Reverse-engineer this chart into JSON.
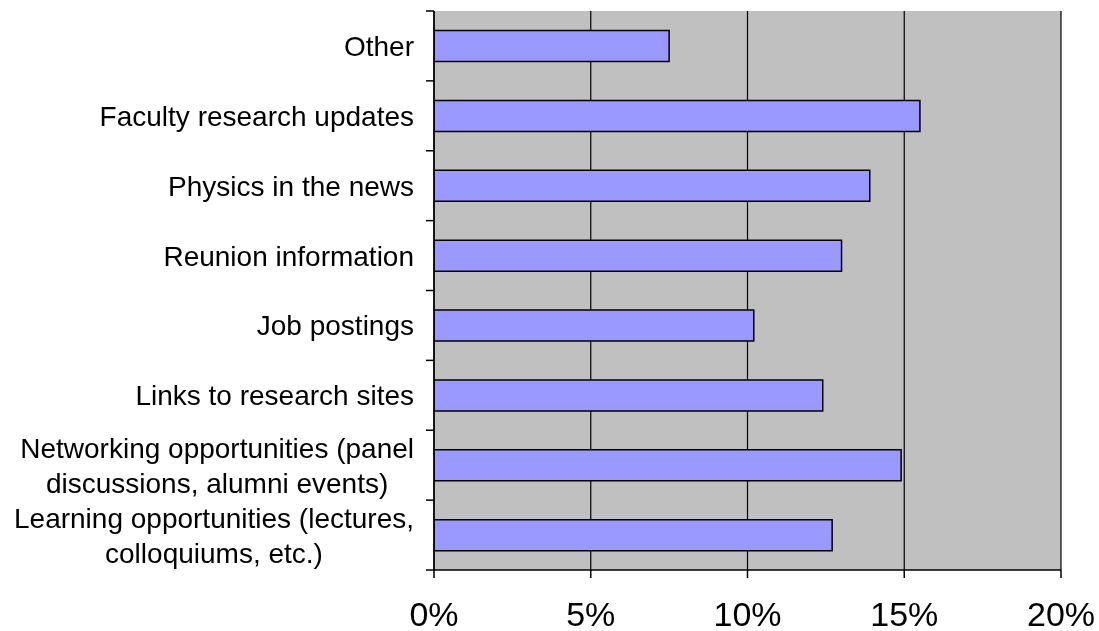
{
  "chart_data": {
    "type": "bar",
    "orientation": "horizontal",
    "categories": [
      "Other",
      "Faculty research updates",
      "Physics in the news",
      "Reunion information",
      "Job postings",
      "Links to research sites",
      "Networking opportunities (panel discussions, alumni events)",
      "Learning opportunities (lectures, colloquiums, etc.)"
    ],
    "values": [
      7.5,
      15.5,
      13.9,
      13.0,
      10.2,
      12.4,
      14.9,
      12.7
    ],
    "color": "#9999ff",
    "xlim": [
      0,
      20
    ],
    "xticks": [
      {
        "value": 0,
        "label": "0%"
      },
      {
        "value": 5,
        "label": "5%"
      },
      {
        "value": 10,
        "label": "10%"
      },
      {
        "value": 15,
        "label": "15%"
      },
      {
        "value": 20,
        "label": "20%"
      }
    ],
    "grid": "x"
  }
}
